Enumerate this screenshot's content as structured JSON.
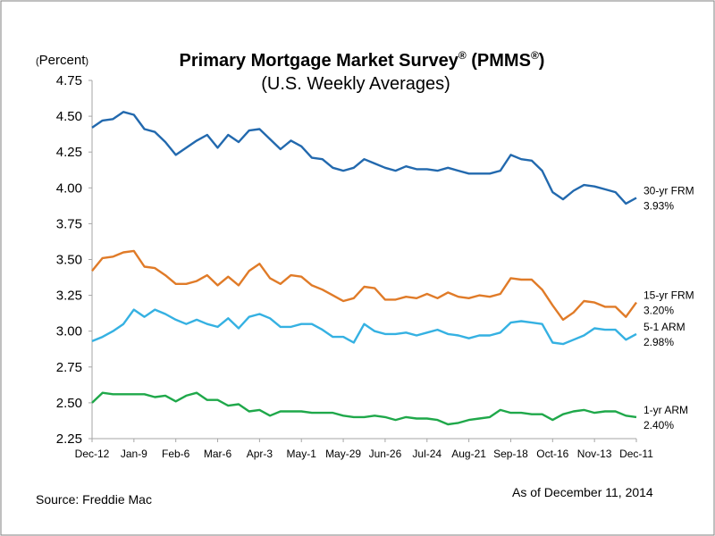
{
  "chart_data": {
    "type": "line",
    "title": "Primary Mortgage Market Survey",
    "title_sup_1": "®",
    "title_mid": " (PMMS",
    "title_sup_2": "®",
    "title_end": ")",
    "subtitle": "(U.S. Weekly Averages)",
    "unit_open": "(",
    "unit_text": "Percent",
    "unit_close": ")",
    "ylim": [
      2.25,
      4.75
    ],
    "yticks": [
      "4.75",
      "4.50",
      "4.25",
      "4.00",
      "3.75",
      "3.50",
      "3.25",
      "3.00",
      "2.75",
      "2.50",
      "2.25"
    ],
    "ytick_values": [
      4.75,
      4.5,
      4.25,
      4.0,
      3.75,
      3.5,
      3.25,
      3.0,
      2.75,
      2.5,
      2.25
    ],
    "xlim": [
      0,
      53
    ],
    "xticks": [
      {
        "label": "Dec-12",
        "week": 0
      },
      {
        "label": "Jan-9",
        "week": 4
      },
      {
        "label": "Feb-6",
        "week": 8
      },
      {
        "label": "Mar-6",
        "week": 12
      },
      {
        "label": "Apr-3",
        "week": 16
      },
      {
        "label": "May-1",
        "week": 20
      },
      {
        "label": "May-29",
        "week": 24
      },
      {
        "label": "Jun-26",
        "week": 28
      },
      {
        "label": "Jul-24",
        "week": 32
      },
      {
        "label": "Aug-21",
        "week": 36
      },
      {
        "label": "Sep-18",
        "week": 40
      },
      {
        "label": "Oct-16",
        "week": 44
      },
      {
        "label": "Nov-13",
        "week": 48
      },
      {
        "label": "Dec-11",
        "week": 52
      }
    ],
    "grid": false,
    "series": [
      {
        "name": "30-yr FRM",
        "last_value_label": "3.93%",
        "color": "#2269ae",
        "values": [
          4.42,
          4.47,
          4.48,
          4.53,
          4.51,
          4.41,
          4.39,
          4.32,
          4.23,
          4.28,
          4.33,
          4.37,
          4.28,
          4.37,
          4.32,
          4.4,
          4.41,
          4.34,
          4.27,
          4.33,
          4.29,
          4.21,
          4.2,
          4.14,
          4.12,
          4.14,
          4.2,
          4.17,
          4.14,
          4.12,
          4.15,
          4.13,
          4.13,
          4.12,
          4.14,
          4.12,
          4.1,
          4.1,
          4.1,
          4.12,
          4.23,
          4.2,
          4.19,
          4.12,
          3.97,
          3.92,
          3.98,
          4.02,
          4.01,
          3.99,
          3.97,
          3.89,
          3.93
        ]
      },
      {
        "name": "15-yr FRM",
        "last_value_label": "3.20%",
        "color": "#e07b28",
        "values": [
          3.42,
          3.51,
          3.52,
          3.55,
          3.56,
          3.45,
          3.44,
          3.39,
          3.33,
          3.33,
          3.35,
          3.39,
          3.32,
          3.38,
          3.32,
          3.42,
          3.47,
          3.37,
          3.33,
          3.39,
          3.38,
          3.32,
          3.29,
          3.25,
          3.21,
          3.23,
          3.31,
          3.3,
          3.22,
          3.22,
          3.24,
          3.23,
          3.26,
          3.23,
          3.27,
          3.24,
          3.23,
          3.25,
          3.24,
          3.26,
          3.37,
          3.36,
          3.36,
          3.29,
          3.18,
          3.08,
          3.13,
          3.21,
          3.2,
          3.17,
          3.17,
          3.1,
          3.2
        ]
      },
      {
        "name": "5-1 ARM",
        "last_value_label": "2.98%",
        "color": "#35b1e2",
        "values": [
          2.93,
          2.96,
          3.0,
          3.05,
          3.15,
          3.1,
          3.15,
          3.12,
          3.08,
          3.05,
          3.08,
          3.05,
          3.03,
          3.09,
          3.02,
          3.1,
          3.12,
          3.09,
          3.03,
          3.03,
          3.05,
          3.05,
          3.01,
          2.96,
          2.96,
          2.92,
          3.05,
          3.0,
          2.98,
          2.98,
          2.99,
          2.97,
          2.99,
          3.01,
          2.98,
          2.97,
          2.95,
          2.97,
          2.97,
          2.99,
          3.06,
          3.07,
          3.06,
          3.05,
          2.92,
          2.91,
          2.94,
          2.97,
          3.02,
          3.01,
          3.01,
          2.94,
          2.98
        ]
      },
      {
        "name": "1-yr ARM",
        "last_value_label": "2.40%",
        "color": "#1fa84a",
        "values": [
          2.5,
          2.57,
          2.56,
          2.56,
          2.56,
          2.56,
          2.54,
          2.55,
          2.51,
          2.55,
          2.57,
          2.52,
          2.52,
          2.48,
          2.49,
          2.44,
          2.45,
          2.41,
          2.44,
          2.44,
          2.44,
          2.43,
          2.43,
          2.43,
          2.41,
          2.4,
          2.4,
          2.41,
          2.4,
          2.38,
          2.4,
          2.39,
          2.39,
          2.38,
          2.35,
          2.36,
          2.38,
          2.39,
          2.4,
          2.45,
          2.43,
          2.43,
          2.42,
          2.42,
          2.38,
          2.42,
          2.44,
          2.45,
          2.43,
          2.44,
          2.44,
          2.41,
          2.4
        ]
      }
    ]
  },
  "footer": {
    "source": "Source: Freddie Mac",
    "as_of": "As of December 11, 2014"
  },
  "colors": {
    "axis": "#a6a6a6",
    "frame": "#808080"
  }
}
